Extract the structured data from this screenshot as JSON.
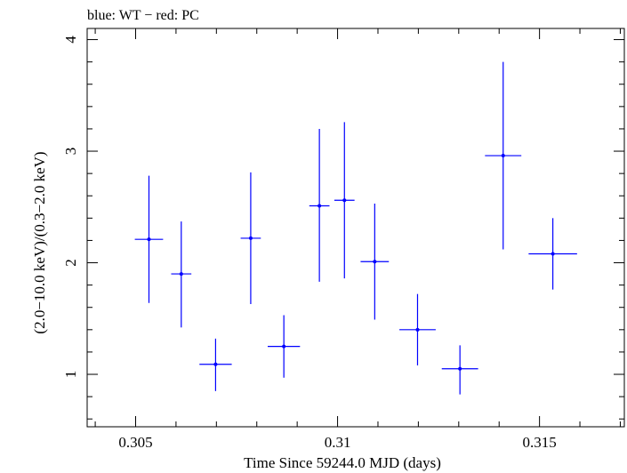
{
  "chart_data": {
    "type": "scatter",
    "title": "blue: WT − red: PC",
    "xlabel": "Time Since 59244.0 MJD (days)",
    "ylabel": "(2.0−10.0 keV)/(0.3−2.0 keV)",
    "xlim": [
      0.3038,
      0.3171
    ],
    "ylim": [
      0.53,
      4.1
    ],
    "x_ticks": [
      0.305,
      0.31,
      0.315
    ],
    "x_tick_labels": [
      "0.305",
      "0.31",
      "0.315"
    ],
    "y_ticks": [
      1,
      2,
      3,
      4
    ],
    "y_tick_labels": [
      "1",
      "2",
      "3",
      "4"
    ],
    "grid": false,
    "colors": {
      "WT": "#0000ff",
      "frame": "#000000"
    },
    "series": [
      {
        "name": "WT",
        "color": "#0000ff",
        "points": [
          {
            "x": 0.30533,
            "xerr": 0.00035,
            "y": 2.21,
            "ylo": 1.64,
            "yhi": 2.78
          },
          {
            "x": 0.30613,
            "xerr": 0.00025,
            "y": 1.9,
            "ylo": 1.42,
            "yhi": 2.37
          },
          {
            "x": 0.30698,
            "xerr": 0.0004,
            "y": 1.09,
            "ylo": 0.85,
            "yhi": 1.32
          },
          {
            "x": 0.30785,
            "xerr": 0.00025,
            "y": 2.22,
            "ylo": 1.63,
            "yhi": 2.81
          },
          {
            "x": 0.30867,
            "xerr": 0.0004,
            "y": 1.25,
            "ylo": 0.97,
            "yhi": 1.53
          },
          {
            "x": 0.30955,
            "xerr": 0.00025,
            "y": 2.51,
            "ylo": 1.83,
            "yhi": 3.2
          },
          {
            "x": 0.31017,
            "xerr": 0.00025,
            "y": 2.56,
            "ylo": 1.86,
            "yhi": 3.26
          },
          {
            "x": 0.31092,
            "xerr": 0.00035,
            "y": 2.01,
            "ylo": 1.49,
            "yhi": 2.53
          },
          {
            "x": 0.31198,
            "xerr": 0.00045,
            "y": 1.4,
            "ylo": 1.08,
            "yhi": 1.72
          },
          {
            "x": 0.31303,
            "xerr": 0.00045,
            "y": 1.05,
            "ylo": 0.82,
            "yhi": 1.26
          },
          {
            "x": 0.3141,
            "xerr": 0.00045,
            "y": 2.96,
            "ylo": 2.12,
            "yhi": 3.8
          },
          {
            "x": 0.31533,
            "xerr": 0.0006,
            "y": 2.08,
            "ylo": 1.76,
            "yhi": 2.4
          }
        ]
      }
    ]
  }
}
